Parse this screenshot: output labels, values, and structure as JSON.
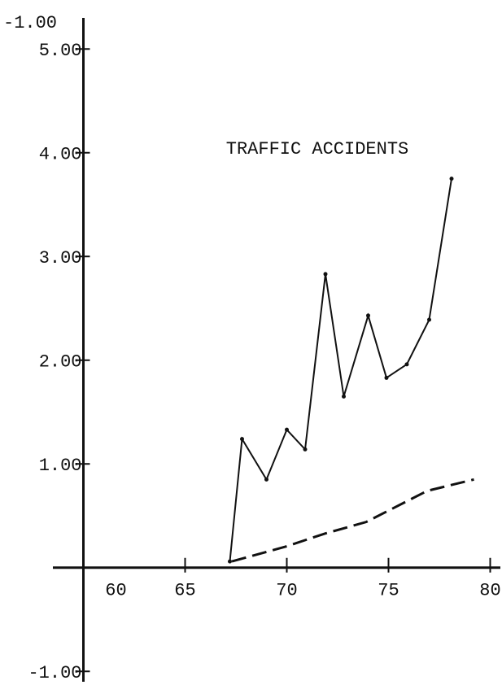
{
  "chart_data": {
    "type": "line",
    "title": "TRAFFIC ACCIDENTS",
    "annotations": [
      "-1.00"
    ],
    "xlim": [
      58.5,
      80.5
    ],
    "ylim": [
      -1.1,
      5.3
    ],
    "xticks": [
      60,
      65,
      70,
      75,
      80
    ],
    "yticks": [
      {
        "value": -1,
        "label": "-1.00"
      },
      {
        "value": 1,
        "label": "1.00"
      },
      {
        "value": 2,
        "label": "2.00"
      },
      {
        "value": 3,
        "label": "3.00"
      },
      {
        "value": 4,
        "label": "4.00"
      },
      {
        "value": 5,
        "label": "5.00"
      }
    ],
    "series": [
      {
        "color": "#111111",
        "style": "solid",
        "x": [
          67.2,
          67.8,
          69.0,
          70.0,
          70.9,
          71.9,
          72.8,
          74.0,
          74.9,
          75.9,
          77.0,
          78.1
        ],
        "values": [
          0.06,
          1.24,
          0.85,
          1.33,
          1.14,
          2.83,
          1.65,
          2.43,
          1.83,
          1.96,
          2.39,
          3.75
        ]
      },
      {
        "color": "#111111",
        "style": "dashed",
        "x": [
          67.3,
          69.9,
          71.9,
          73.9,
          75.1,
          76.9,
          79.2
        ],
        "values": [
          0.06,
          0.2,
          0.33,
          0.44,
          0.56,
          0.74,
          0.85
        ]
      }
    ]
  }
}
